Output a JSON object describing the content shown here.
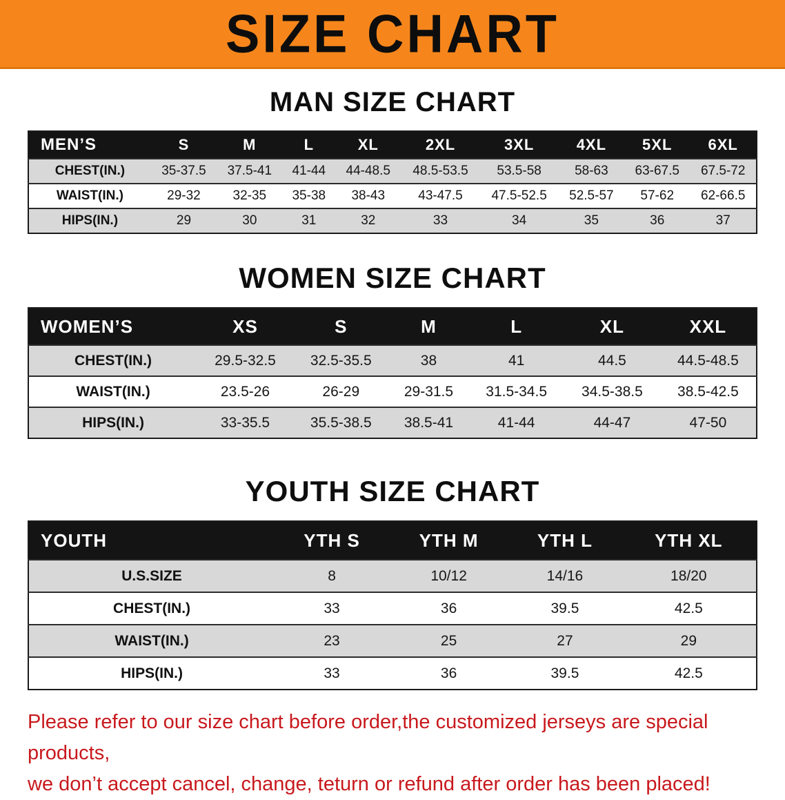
{
  "banner": {
    "title": "SIZE CHART"
  },
  "colors": {
    "banner_bg": "#f6861c",
    "table_header_bg": "#141414",
    "row_stripe": "#d8d8d8",
    "note_red": "#c8191d"
  },
  "men": {
    "heading": "MAN SIZE CHART",
    "header": [
      "MEN’S",
      "S",
      "M",
      "L",
      "XL",
      "2XL",
      "3XL",
      "4XL",
      "5XL",
      "6XL"
    ],
    "rows": [
      {
        "label": "CHEST(IN.)",
        "values": [
          "35-37.5",
          "37.5-41",
          "41-44",
          "44-48.5",
          "48.5-53.5",
          "53.5-58",
          "58-63",
          "63-67.5",
          "67.5-72"
        ]
      },
      {
        "label": "WAIST(IN.)",
        "values": [
          "29-32",
          "32-35",
          "35-38",
          "38-43",
          "43-47.5",
          "47.5-52.5",
          "52.5-57",
          "57-62",
          "62-66.5"
        ]
      },
      {
        "label": "HIPS(IN.)",
        "values": [
          "29",
          "30",
          "31",
          "32",
          "33",
          "34",
          "35",
          "36",
          "37"
        ]
      }
    ]
  },
  "women": {
    "heading": "WOMEN SIZE CHART",
    "header": [
      "WOMEN’S",
      "XS",
      "S",
      "M",
      "L",
      "XL",
      "XXL"
    ],
    "rows": [
      {
        "label": "CHEST(IN.)",
        "values": [
          "29.5-32.5",
          "32.5-35.5",
          "38",
          "41",
          "44.5",
          "44.5-48.5"
        ]
      },
      {
        "label": "WAIST(IN.)",
        "values": [
          "23.5-26",
          "26-29",
          "29-31.5",
          "31.5-34.5",
          "34.5-38.5",
          "38.5-42.5"
        ]
      },
      {
        "label": "HIPS(IN.)",
        "values": [
          "33-35.5",
          "35.5-38.5",
          "38.5-41",
          "41-44",
          "44-47",
          "47-50"
        ]
      }
    ]
  },
  "youth": {
    "heading": "YOUTH SIZE CHART",
    "header": [
      "YOUTH",
      "YTH S",
      "YTH M",
      "YTH L",
      "YTH XL"
    ],
    "rows": [
      {
        "label": "U.S.SIZE",
        "values": [
          "8",
          "10/12",
          "14/16",
          "18/20"
        ]
      },
      {
        "label": "CHEST(IN.)",
        "values": [
          "33",
          "36",
          "39.5",
          "42.5"
        ]
      },
      {
        "label": "WAIST(IN.)",
        "values": [
          "23",
          "25",
          "27",
          "29"
        ]
      },
      {
        "label": "HIPS(IN.)",
        "values": [
          "33",
          "36",
          "39.5",
          "42.5"
        ]
      }
    ]
  },
  "footer": {
    "line1": "Please refer to our size chart before order,the customized jerseys are special products,",
    "line2": "we don’t accept cancel, change, teturn or refund after order has been placed!"
  }
}
